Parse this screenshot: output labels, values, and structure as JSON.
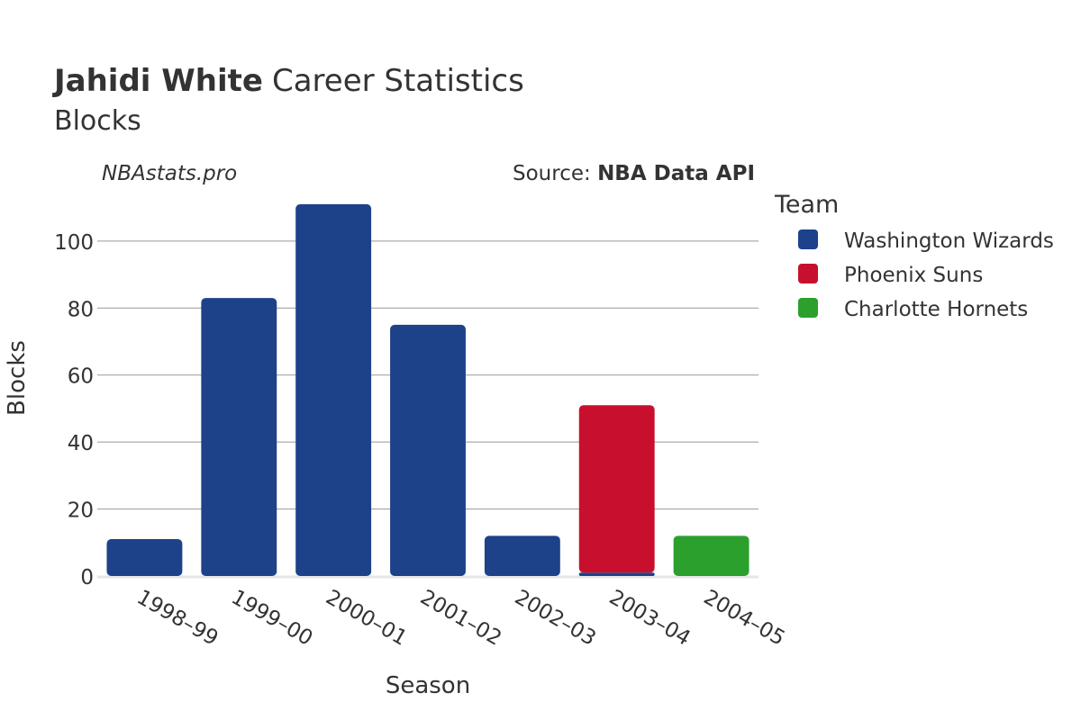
{
  "header": {
    "player_name": "Jahidi White",
    "title_rest": "Career Statistics",
    "subtitle": "Blocks"
  },
  "watermark": "NBAstats.pro",
  "source": {
    "label": "Source: ",
    "name": "NBA Data API"
  },
  "legend": {
    "title": "Team",
    "items": [
      {
        "name": "Washington Wizards",
        "color": "#1d428a"
      },
      {
        "name": "Phoenix Suns",
        "color": "#c8102e"
      },
      {
        "name": "Charlotte Hornets",
        "color": "#2ca02c"
      }
    ]
  },
  "chart_data": {
    "type": "bar",
    "stacked": true,
    "title": "Jahidi White Career Statistics Blocks",
    "xlabel": "Season",
    "ylabel": "Blocks",
    "ylim": [
      0,
      115
    ],
    "yticks": [
      0,
      20,
      40,
      60,
      80,
      100
    ],
    "grid": true,
    "legend_position": "right",
    "categories": [
      "1998–99",
      "1999–00",
      "2000–01",
      "2001–02",
      "2002–03",
      "2003–04",
      "2004–05"
    ],
    "series": [
      {
        "name": "Washington Wizards",
        "color": "#1d428a",
        "values": [
          11,
          83,
          111,
          75,
          12,
          1,
          0
        ]
      },
      {
        "name": "Phoenix Suns",
        "color": "#c8102e",
        "values": [
          0,
          0,
          0,
          0,
          0,
          50,
          0
        ]
      },
      {
        "name": "Charlotte Hornets",
        "color": "#2ca02c",
        "values": [
          0,
          0,
          0,
          0,
          0,
          0,
          12
        ]
      }
    ]
  }
}
